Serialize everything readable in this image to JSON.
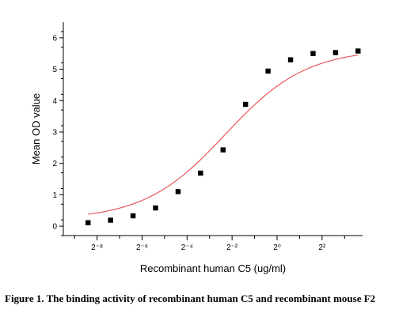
{
  "caption": "Figure 1. The binding activity of recombinant human C5 and recombinant mouse F2",
  "chart_data": {
    "type": "scatter",
    "title": "",
    "xlabel": "Recombinant human  C5  (ug/ml)",
    "ylabel": "Mean OD value",
    "x_scale": "log2",
    "x_tick_labels": [
      "2⁻⁸",
      "2⁻⁶",
      "2⁻⁴",
      "2⁻²",
      "2⁰",
      "2²"
    ],
    "x_tick_exponents": [
      -8,
      -6,
      -4,
      -2,
      0,
      2
    ],
    "xlim_exponent": [
      -9.5,
      3.8
    ],
    "ylim": [
      -0.3,
      6.5
    ],
    "y_ticks": [
      0,
      1,
      2,
      3,
      4,
      5,
      6
    ],
    "grid": false,
    "legend": "none",
    "marker_color": "#000000",
    "curve_color": "#e8585a",
    "series": [
      {
        "x_exponent": [
          -8.4,
          -7.4,
          -6.4,
          -5.4,
          -4.4,
          -3.4,
          -2.4,
          -1.4,
          -0.4,
          0.6,
          1.6,
          2.6,
          3.6
        ],
        "values": [
          0.11,
          0.19,
          0.33,
          0.58,
          1.1,
          1.69,
          2.43,
          3.88,
          4.94,
          5.3,
          5.5,
          5.53,
          5.58
        ]
      }
    ],
    "fit_curve": {
      "bottom": 0.2,
      "top": 5.65,
      "ec50_exponent": -2.3,
      "hill": 0.8
    }
  }
}
